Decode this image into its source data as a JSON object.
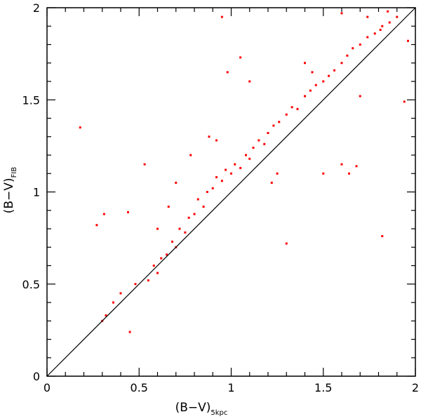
{
  "chart_data": {
    "type": "scatter",
    "title": "",
    "xlabel_main": "(B−V)",
    "xlabel_sub": "5kpc",
    "ylabel_main": "(B−V)",
    "ylabel_sub": "FIB",
    "xlim": [
      0,
      2
    ],
    "ylim": [
      0,
      2
    ],
    "x_ticks": [
      0,
      0.5,
      1,
      1.5,
      2
    ],
    "y_ticks": [
      0,
      0.5,
      1,
      1.5,
      2
    ],
    "x_tick_labels": [
      "0",
      "0.5",
      "1",
      "1.5",
      "2"
    ],
    "y_tick_labels": [
      "0",
      "0.5",
      "1",
      "1.5",
      "2"
    ],
    "grid": false,
    "reference_line": {
      "label": "",
      "x": [
        0,
        2
      ],
      "y": [
        0,
        2
      ],
      "color": "#000000"
    },
    "series": [
      {
        "color": "#ff0000",
        "points": [
          [
            0.18,
            1.35
          ],
          [
            0.27,
            0.82
          ],
          [
            0.31,
            0.88
          ],
          [
            0.44,
            0.89
          ],
          [
            0.53,
            1.15
          ],
          [
            1.94,
            1.49
          ],
          [
            1.82,
            0.76
          ],
          [
            1.3,
            0.72
          ],
          [
            1.5,
            1.1
          ],
          [
            1.6,
            1.15
          ],
          [
            1.64,
            1.1
          ],
          [
            1.68,
            1.14
          ],
          [
            1.4,
            1.7
          ],
          [
            1.44,
            1.65
          ],
          [
            0.98,
            1.65
          ],
          [
            1.05,
            1.73
          ],
          [
            1.1,
            1.6
          ],
          [
            0.95,
            1.95
          ],
          [
            1.6,
            1.97
          ],
          [
            1.85,
            1.98
          ],
          [
            1.74,
            1.95
          ],
          [
            1.81,
            1.88
          ],
          [
            1.96,
            1.82
          ],
          [
            1.7,
            1.52
          ],
          [
            0.3,
            0.3
          ],
          [
            0.32,
            0.33
          ],
          [
            0.36,
            0.4
          ],
          [
            0.45,
            0.24
          ],
          [
            0.4,
            0.45
          ],
          [
            0.48,
            0.5
          ],
          [
            0.55,
            0.52
          ],
          [
            0.58,
            0.6
          ],
          [
            0.6,
            0.56
          ],
          [
            0.62,
            0.64
          ],
          [
            0.65,
            0.66
          ],
          [
            0.68,
            0.73
          ],
          [
            0.7,
            0.7
          ],
          [
            0.72,
            0.8
          ],
          [
            0.75,
            0.78
          ],
          [
            0.77,
            0.86
          ],
          [
            0.8,
            0.88
          ],
          [
            0.82,
            0.96
          ],
          [
            0.85,
            0.92
          ],
          [
            0.87,
            1.0
          ],
          [
            0.9,
            1.02
          ],
          [
            0.92,
            1.08
          ],
          [
            0.95,
            1.06
          ],
          [
            0.97,
            1.12
          ],
          [
            1.0,
            1.1
          ],
          [
            1.02,
            1.15
          ],
          [
            1.05,
            1.13
          ],
          [
            1.08,
            1.2
          ],
          [
            1.1,
            1.18
          ],
          [
            1.12,
            1.24
          ],
          [
            1.15,
            1.28
          ],
          [
            1.18,
            1.26
          ],
          [
            1.2,
            1.32
          ],
          [
            1.23,
            1.36
          ],
          [
            1.26,
            1.38
          ],
          [
            1.3,
            1.42
          ],
          [
            1.33,
            1.46
          ],
          [
            1.36,
            1.45
          ],
          [
            1.4,
            1.52
          ],
          [
            1.43,
            1.55
          ],
          [
            1.46,
            1.58
          ],
          [
            1.5,
            1.6
          ],
          [
            1.53,
            1.63
          ],
          [
            1.56,
            1.66
          ],
          [
            1.6,
            1.7
          ],
          [
            1.63,
            1.74
          ],
          [
            1.66,
            1.78
          ],
          [
            1.7,
            1.8
          ],
          [
            1.74,
            1.84
          ],
          [
            1.78,
            1.86
          ],
          [
            1.82,
            1.9
          ],
          [
            1.86,
            1.92
          ],
          [
            1.9,
            1.95
          ],
          [
            0.88,
            1.3
          ],
          [
            0.92,
            1.28
          ],
          [
            0.78,
            1.2
          ],
          [
            0.7,
            1.05
          ],
          [
            1.25,
            1.1
          ],
          [
            1.22,
            1.05
          ],
          [
            0.6,
            0.8
          ],
          [
            0.66,
            0.92
          ]
        ]
      }
    ]
  }
}
